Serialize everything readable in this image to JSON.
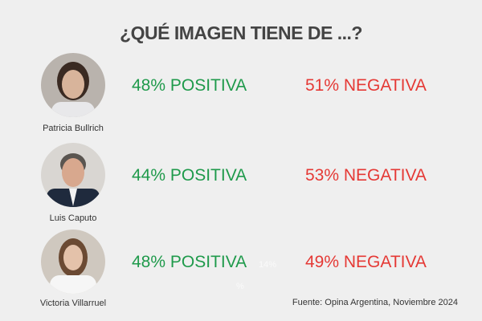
{
  "header": {
    "title": "¿QUÉ IMAGEN TIENE DE ...?"
  },
  "people": [
    {
      "name": "Patricia Bullrich",
      "positive": "48% POSITIVA",
      "negative": "51% NEGATIVA"
    },
    {
      "name": "Luis Caputo",
      "positive": "44% POSITIVA",
      "negative": "53% NEGATIVA"
    },
    {
      "name": "Victoria Villarruel",
      "positive": "48% POSITIVA",
      "negative": "49% NEGATIVA"
    }
  ],
  "artifacts": [
    "14%",
    "%"
  ],
  "footer": {
    "source": "Fuente: Opina Argentina, Noviembre 2024"
  }
}
